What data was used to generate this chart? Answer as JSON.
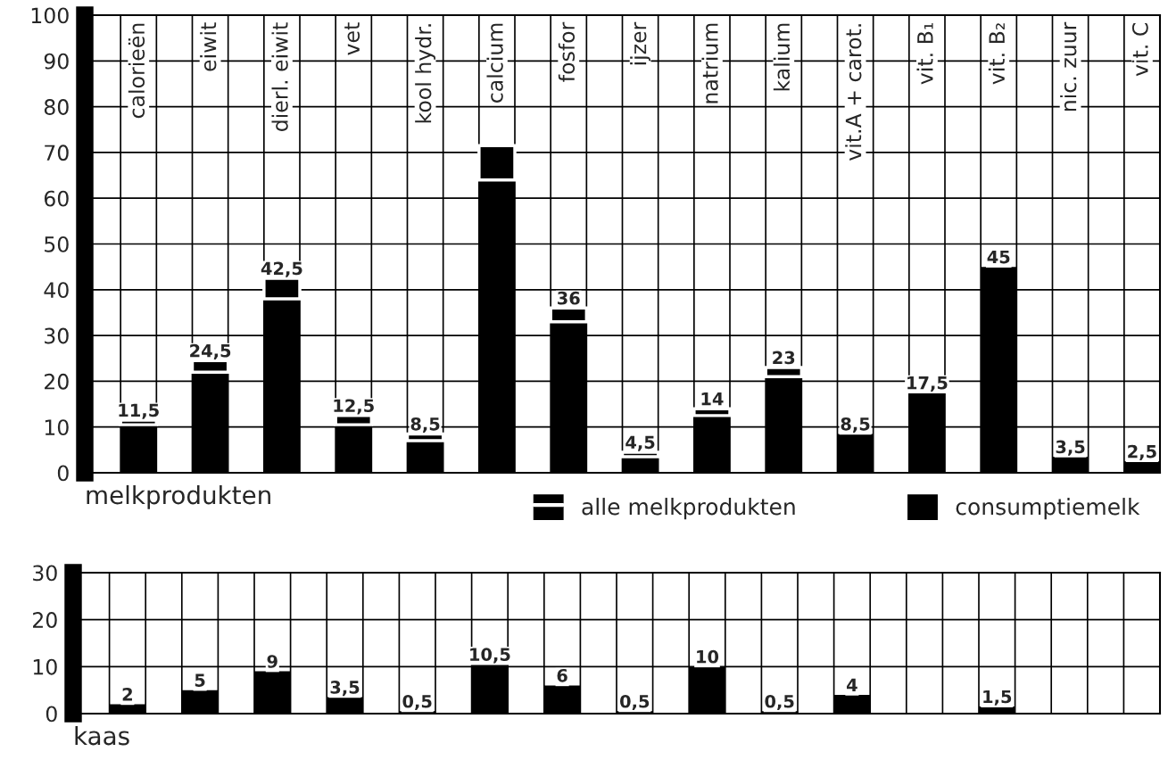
{
  "chart_data": [
    {
      "type": "bar",
      "stacked": true,
      "xlabel": "melkprodukten",
      "categories": [
        "calorieën",
        "eiwit",
        "dierl. eiwit",
        "vet",
        "kool hydr.",
        "calcium",
        "fosfor",
        "ijzer",
        "natrium",
        "kalium",
        "vit.A + carot.",
        "vit. B₁",
        "vit. B₂",
        "nic. zuur",
        "vit. C"
      ],
      "series": [
        {
          "name": "consumptiemelk",
          "color": "#000000",
          "values": [
            10.5,
            22,
            38,
            10.5,
            7,
            64,
            33,
            3.5,
            12.5,
            21,
            8.5,
            17.5,
            45,
            3.5,
            2.5
          ]
        },
        {
          "name": "alle melkprodukten",
          "color": "#000000",
          "values": [
            1,
            2.5,
            4.5,
            2,
            1.5,
            7.5,
            3,
            1,
            1.5,
            2,
            null,
            null,
            null,
            null,
            null
          ]
        }
      ],
      "totals": [
        "11,5",
        "24,5",
        "42,5",
        "12,5",
        "8,5",
        null,
        "36",
        "4,5",
        "14",
        "23",
        "8,5",
        "17,5",
        "45",
        "3,5",
        "2,5"
      ],
      "ylim": [
        0,
        100
      ],
      "yticks": [
        0,
        10,
        20,
        30,
        40,
        50,
        60,
        70,
        80,
        90,
        100
      ],
      "grid": true,
      "legend": "bottom"
    },
    {
      "type": "bar",
      "xlabel": "kaas",
      "categories": [
        null,
        null,
        null,
        null,
        null,
        null,
        null,
        null,
        null,
        null,
        null,
        null,
        null,
        null,
        null
      ],
      "values": [
        2,
        5,
        9,
        3.5,
        0.5,
        10.5,
        6,
        0.5,
        10,
        0.5,
        4,
        null,
        1.5,
        null,
        null
      ],
      "color": "#000000",
      "value_labels": [
        "2",
        "5",
        "9",
        "3,5",
        "0,5",
        "10,5",
        "6",
        "0,5",
        "10",
        "0,5",
        "4",
        null,
        "1,5",
        null,
        null
      ],
      "ylim": [
        0,
        30
      ],
      "yticks": [
        0,
        10,
        20,
        30
      ],
      "grid": true
    }
  ]
}
